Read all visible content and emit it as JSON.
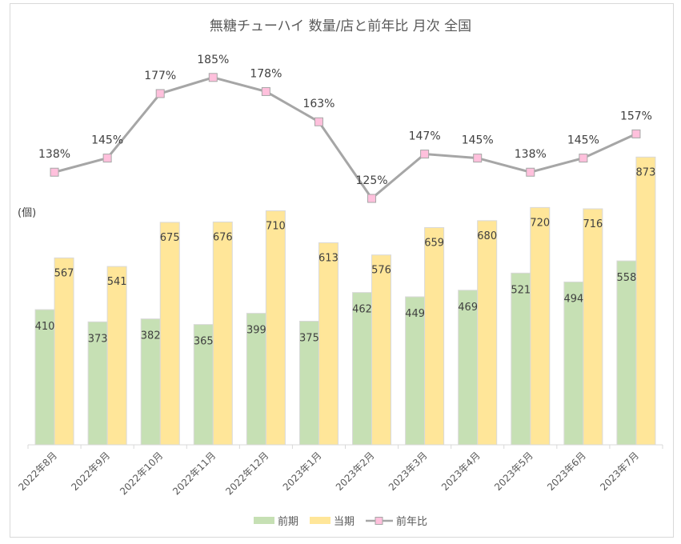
{
  "chart_data": {
    "type": "bar",
    "title": "無糖チューハイ  数量/店と前年比  月次  全国",
    "ylabel": "(個)",
    "xlabel": "",
    "categories": [
      "2022年8月",
      "2022年9月",
      "2022年10月",
      "2022年11月",
      "2022年12月",
      "2023年1月",
      "2023年2月",
      "2023年3月",
      "2023年4月",
      "2023年5月",
      "2023年6月",
      "2023年7月"
    ],
    "ylim": [
      0,
      1000
    ],
    "y2lim": [
      0,
      200
    ],
    "grid": false,
    "legend_position": "bottom",
    "series": [
      {
        "name": "前期",
        "kind": "bar",
        "color": "#c6e0b4",
        "values": [
          410,
          373,
          382,
          365,
          399,
          375,
          462,
          449,
          469,
          521,
          494,
          558
        ]
      },
      {
        "name": "当期",
        "kind": "bar",
        "color": "#ffe699",
        "values": [
          567,
          541,
          675,
          676,
          710,
          613,
          576,
          659,
          680,
          720,
          716,
          873
        ]
      },
      {
        "name": "前年比",
        "kind": "line",
        "color": "#a6a6a6",
        "marker_color": "#ffc0dc",
        "values": [
          138,
          145,
          177,
          185,
          178,
          163,
          125,
          147,
          145,
          138,
          145,
          157
        ],
        "labels": [
          "138%",
          "145%",
          "177%",
          "185%",
          "178%",
          "163%",
          "125%",
          "147%",
          "145%",
          "138%",
          "145%",
          "157%"
        ]
      }
    ]
  }
}
